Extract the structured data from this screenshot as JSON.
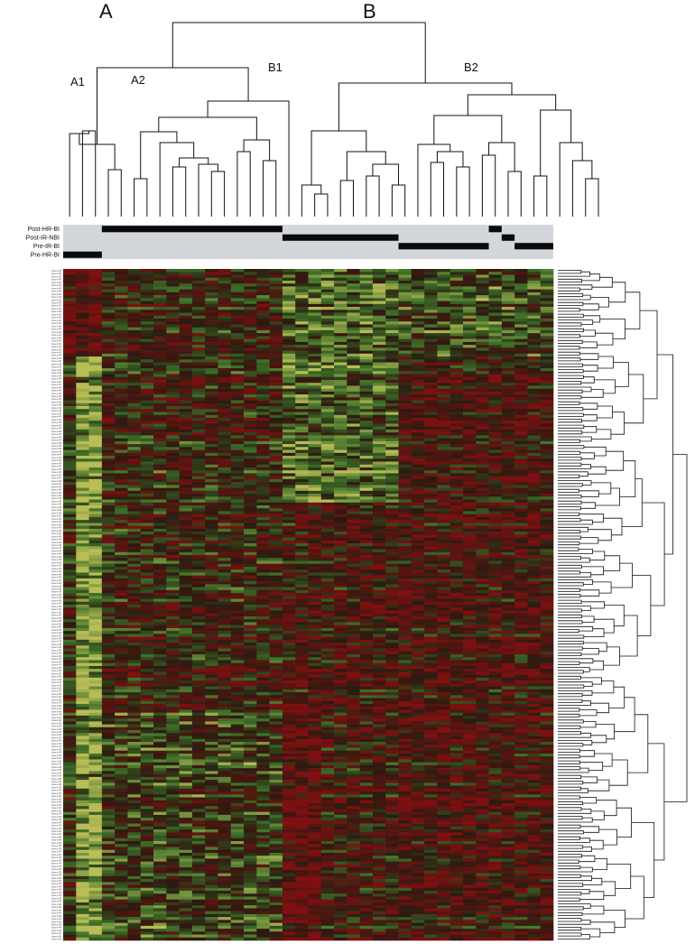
{
  "chart_data": {
    "type": "heatmap",
    "title": "",
    "xlabel": "",
    "ylabel": "",
    "n_samples": 38,
    "n_rows": 230,
    "row_label_prefix": "hsa-miR",
    "clusters": {
      "top": [
        {
          "label": "A",
          "subclusters": [
            {
              "label": "A1"
            },
            {
              "label": "A2"
            }
          ]
        },
        {
          "label": "B",
          "subclusters": [
            {
              "label": "B1"
            },
            {
              "label": "B2"
            }
          ]
        }
      ]
    },
    "groups": [
      {
        "label": "Post-HR-BI",
        "sample_ranges": [
          [
            3,
            16
          ],
          [
            33,
            33
          ]
        ]
      },
      {
        "label": "Post-IR-NBI",
        "sample_ranges": [
          [
            17,
            25
          ],
          [
            34,
            34
          ]
        ]
      },
      {
        "label": "Pre-IR-BI",
        "sample_ranges": [
          [
            26,
            32
          ],
          [
            35,
            37
          ]
        ]
      },
      {
        "label": "Pre-HR-BI",
        "sample_ranges": [
          [
            0,
            2
          ]
        ]
      }
    ],
    "colormap": {
      "low": "#b9bd56",
      "mid": "#2b1a10",
      "high": "#7d1010",
      "range": [
        -3,
        3
      ]
    },
    "legend": "none",
    "grid": false
  }
}
